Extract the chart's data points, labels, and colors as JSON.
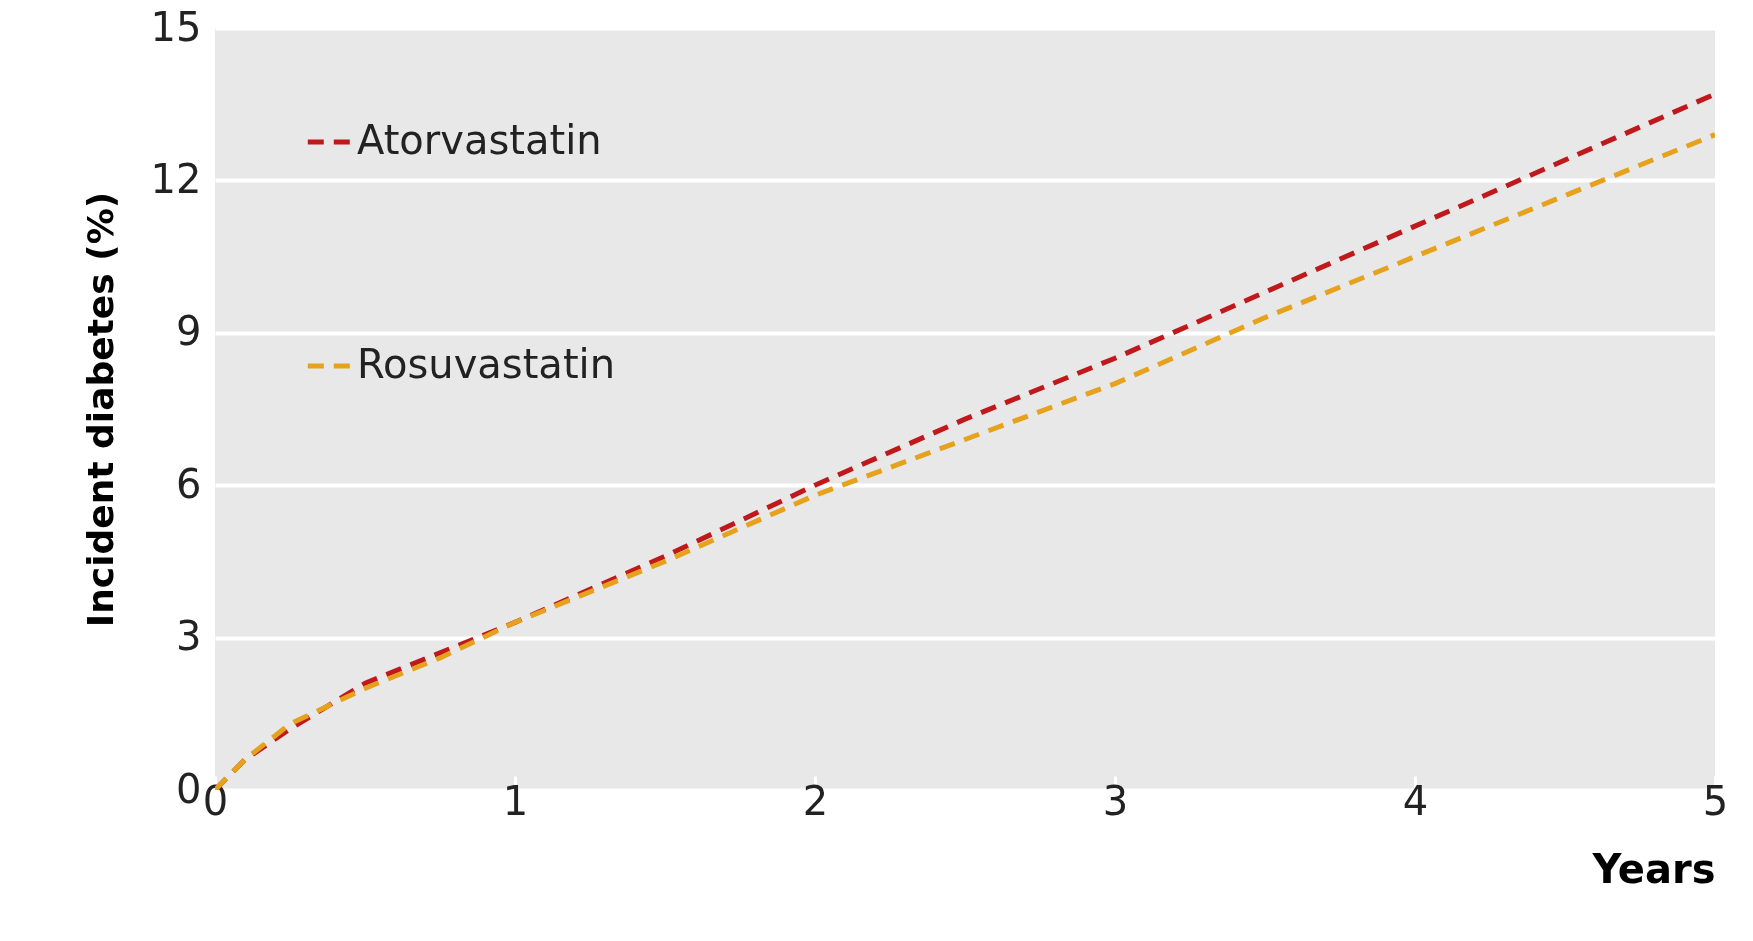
{
  "chart_data": {
    "type": "line",
    "xlabel": "Years",
    "ylabel": "Incident diabetes (%)",
    "x": [
      0,
      0.1,
      0.25,
      0.5,
      0.75,
      1,
      1.5,
      2,
      2.5,
      3,
      3.5,
      4,
      4.5,
      5
    ],
    "series": [
      {
        "name": "Atorvastatin",
        "color": "#c0191c",
        "values": [
          0,
          0.6,
          1.2,
          2.1,
          2.7,
          3.3,
          4.6,
          6.0,
          7.3,
          8.5,
          9.8,
          11.1,
          12.4,
          13.7
        ]
      },
      {
        "name": "Rosuvastatin",
        "color": "#e6a21c",
        "values": [
          0,
          0.6,
          1.3,
          2.0,
          2.6,
          3.3,
          4.5,
          5.8,
          6.9,
          8.0,
          9.3,
          10.5,
          11.7,
          12.9
        ]
      }
    ],
    "xlim": [
      0,
      5
    ],
    "xticks": [
      0,
      1,
      2,
      3,
      4,
      5
    ],
    "ylim": [
      0,
      15
    ],
    "yticks": [
      0,
      3,
      6,
      9,
      12,
      15
    ],
    "grid": "y",
    "legend": "top left",
    "line_style": "dashed"
  }
}
